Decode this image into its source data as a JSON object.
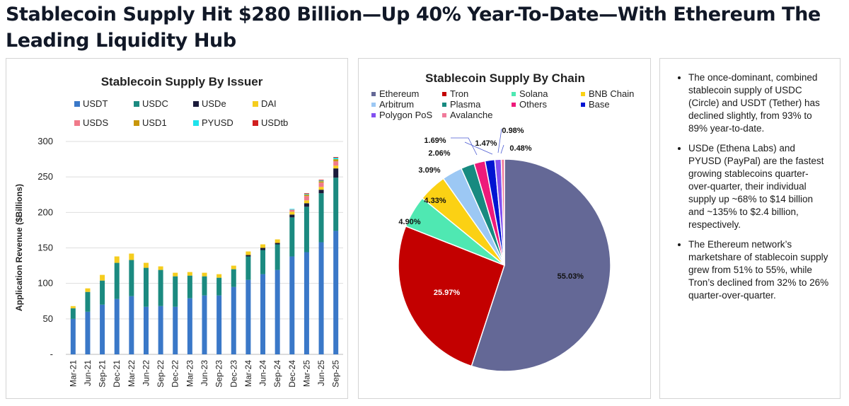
{
  "headline": "Stablecoin Supply Hit $280 Billion—Up 40% Year-To-Date—With Ethereum The Leading Liquidity Hub",
  "chart_data": [
    {
      "type": "bar",
      "stacked": true,
      "title": "Stablecoin Supply By Issuer",
      "xlabel": "",
      "ylabel": "Application Revenue ($Billions)",
      "ylim": [
        0,
        300
      ],
      "yticks": [
        0,
        50,
        100,
        150,
        200,
        250,
        300
      ],
      "ytick_labels": [
        "-",
        "50",
        "100",
        "150",
        "200",
        "250",
        "300"
      ],
      "legend_position": "top",
      "categories": [
        "Mar-21",
        "Jun-21",
        "Sep-21",
        "Dec-21",
        "Mar-22",
        "Jun-22",
        "Sep-22",
        "Dec-22",
        "Mar-23",
        "Jun-23",
        "Sep-23",
        "Dec-23",
        "Mar-24",
        "Jun-24",
        "Sep-24",
        "Dec-24",
        "Mar-25",
        "Jun-25",
        "Sep-25"
      ],
      "series": [
        {
          "name": "USDT",
          "color": "#3a78c8",
          "values": [
            50,
            60,
            70,
            78,
            82,
            67,
            68,
            67,
            79,
            83,
            83,
            95,
            105,
            113,
            119,
            138,
            144,
            158,
            174
          ]
        },
        {
          "name": "USDC",
          "color": "#1b8a80",
          "values": [
            15,
            28,
            34,
            51,
            51,
            55,
            51,
            43,
            32,
            27,
            25,
            25,
            33,
            34,
            36,
            55,
            64,
            69,
            75
          ]
        },
        {
          "name": "USDe",
          "color": "#1a1a3a",
          "values": [
            0,
            0,
            0,
            0,
            0,
            0,
            0,
            0,
            0,
            0,
            0,
            0,
            2,
            3,
            2,
            4,
            5,
            5,
            13
          ]
        },
        {
          "name": "DAI",
          "color": "#f5cd1e",
          "values": [
            3,
            5,
            8,
            9,
            9,
            7,
            5,
            5,
            5,
            5,
            5,
            5,
            5,
            5,
            5,
            4,
            4,
            4,
            4
          ]
        },
        {
          "name": "USDS",
          "color": "#f07a8a",
          "values": [
            0,
            0,
            0,
            0,
            0,
            0,
            0,
            0,
            0,
            0,
            0,
            0,
            0,
            0,
            0,
            3,
            6,
            6,
            6
          ]
        },
        {
          "name": "USD1",
          "color": "#c8960a",
          "values": [
            0,
            0,
            0,
            0,
            0,
            0,
            0,
            0,
            0,
            0,
            0,
            0,
            0,
            0,
            0,
            0,
            2,
            2,
            3
          ]
        },
        {
          "name": "PYUSD",
          "color": "#1ee3ec",
          "values": [
            0,
            0,
            0,
            0,
            0,
            0,
            0,
            0,
            0,
            0,
            0,
            0,
            0,
            0,
            0,
            1,
            1,
            1,
            2
          ]
        },
        {
          "name": "USDtb",
          "color": "#d12020",
          "values": [
            0,
            0,
            0,
            0,
            0,
            0,
            0,
            0,
            0,
            0,
            0,
            0,
            0,
            0,
            0,
            0,
            1,
            1,
            1
          ]
        }
      ]
    },
    {
      "type": "pie",
      "title": "Stablecoin Supply By Chain",
      "legend_position": "top",
      "legend_names": [
        "Ethereum",
        "Tron",
        "Solana",
        "BNB Chain",
        "Arbitrum",
        "Plasma",
        "Others",
        "Base",
        "Polygon PoS",
        "Avalanche"
      ],
      "legend_colors": [
        "#646896",
        "#c30000",
        "#4fe8b2",
        "#fbd114",
        "#9cc8f4",
        "#178a80",
        "#ee1a7a",
        "#0014d2",
        "#8250f0",
        "#f07a9a"
      ],
      "slices": [
        {
          "name": "Ethereum",
          "value": 55.03,
          "label": "55.03%",
          "color": "#646896"
        },
        {
          "name": "Tron",
          "value": 25.97,
          "label": "25.97%",
          "color": "#c30000"
        },
        {
          "name": "Solana",
          "value": 4.9,
          "label": "4.90%",
          "color": "#4fe8b2"
        },
        {
          "name": "BNB Chain",
          "value": 4.33,
          "label": "4.33%",
          "color": "#fbd114"
        },
        {
          "name": "Arbitrum",
          "value": 3.09,
          "label": "3.09%",
          "color": "#9cc8f4"
        },
        {
          "name": "Plasma",
          "value": 2.06,
          "label": "2.06%",
          "color": "#178a80"
        },
        {
          "name": "Others",
          "value": 1.69,
          "label": "1.69%",
          "color": "#ee1a7a"
        },
        {
          "name": "Base",
          "value": 1.47,
          "label": "1.47%",
          "color": "#0014d2"
        },
        {
          "name": "Polygon PoS",
          "value": 0.98,
          "label": "0.98%",
          "color": "#8250f0"
        },
        {
          "name": "Avalanche",
          "value": 0.48,
          "label": "0.48%",
          "color": "#f07a9a"
        }
      ]
    }
  ],
  "notes": [
    "The once-dominant, combined stablecoin supply of USDC (Circle) and USDT (Tether) has declined slightly, from 93% to 89% year-to-date.",
    "USDe (Ethena Labs) and PYUSD (PayPal) are the fastest growing stablecoins quarter-over-quarter, their individual supply up ~68% to $14 billion and ~135% to $2.4 billion, respectively.",
    "The Ethereum network’s marketshare of stablecoin supply grew from 51% to 55%, while Tron’s declined from 32% to 26% quarter-over-quarter."
  ]
}
